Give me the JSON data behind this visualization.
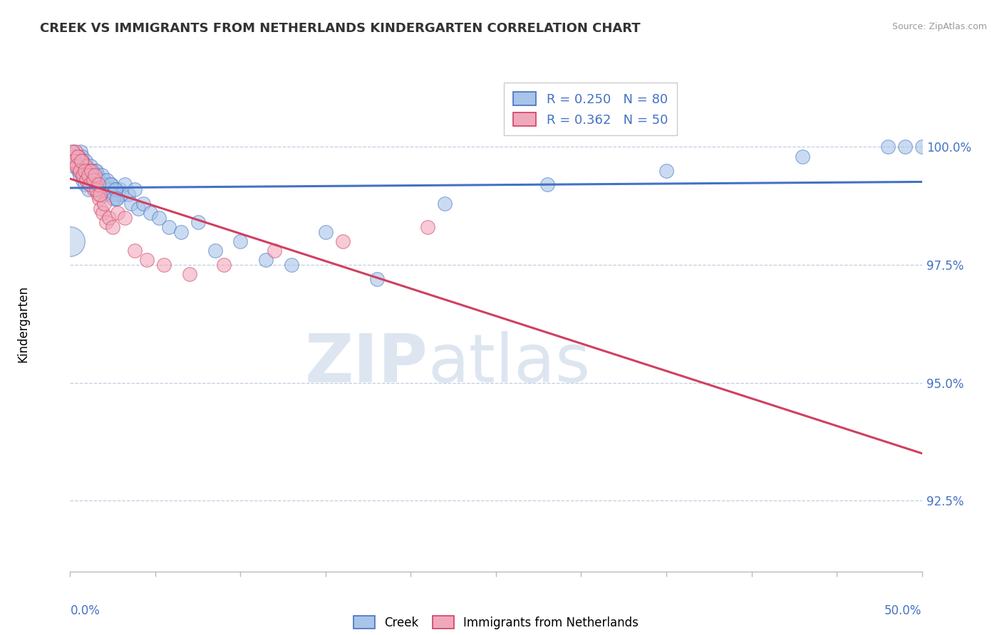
{
  "title": "CREEK VS IMMIGRANTS FROM NETHERLANDS KINDERGARTEN CORRELATION CHART",
  "source_text": "Source: ZipAtlas.com",
  "ylabel": "Kindergarten",
  "legend_entry1": "R = 0.250   N = 80",
  "legend_entry2": "R = 0.362   N = 50",
  "legend_label1": "Creek",
  "legend_label2": "Immigrants from Netherlands",
  "blue_color": "#a8c4e8",
  "pink_color": "#f0a8bc",
  "trend_blue": "#4472c4",
  "trend_pink": "#d04060",
  "grid_color": "#c0cfe0",
  "ytick_labels": [
    "92.5%",
    "95.0%",
    "97.5%",
    "100.0%"
  ],
  "ytick_values": [
    92.5,
    95.0,
    97.5,
    100.0
  ],
  "xmin": 0.0,
  "xmax": 50.0,
  "ymin": 91.0,
  "ymax": 101.5,
  "blue_x": [
    0.2,
    0.3,
    0.4,
    0.5,
    0.6,
    0.7,
    0.8,
    0.9,
    1.0,
    1.1,
    1.2,
    1.3,
    1.4,
    1.5,
    1.6,
    1.7,
    1.8,
    1.9,
    2.0,
    2.1,
    2.2,
    2.3,
    2.4,
    2.5,
    2.6,
    2.7,
    2.8,
    2.9,
    3.0,
    3.2,
    3.4,
    3.6,
    3.8,
    4.0,
    4.3,
    4.7,
    5.2,
    5.8,
    6.5,
    7.5,
    8.5,
    10.0,
    11.5,
    13.0,
    15.0,
    18.0,
    22.0,
    28.0,
    35.0,
    43.0,
    48.0,
    49.0,
    50.0,
    0.15,
    0.25,
    0.35,
    0.45,
    0.55,
    0.65,
    0.75,
    0.85,
    0.95,
    1.05,
    1.15,
    1.25,
    1.35,
    1.45,
    1.55,
    1.65,
    1.75,
    1.85,
    1.95,
    2.05,
    2.15,
    2.25,
    2.35,
    2.45,
    2.55,
    2.65,
    2.75
  ],
  "blue_y": [
    99.6,
    99.7,
    99.8,
    99.5,
    99.9,
    99.8,
    99.6,
    99.7,
    99.5,
    99.4,
    99.6,
    99.5,
    99.3,
    99.5,
    99.4,
    99.2,
    99.3,
    99.1,
    99.3,
    99.2,
    99.0,
    99.1,
    99.2,
    99.0,
    99.1,
    98.9,
    99.0,
    99.1,
    99.0,
    99.2,
    99.0,
    98.8,
    99.1,
    98.7,
    98.8,
    98.6,
    98.5,
    98.3,
    98.2,
    98.4,
    97.8,
    98.0,
    97.6,
    97.5,
    98.2,
    97.2,
    98.8,
    99.2,
    99.5,
    99.8,
    100.0,
    100.0,
    100.0,
    99.9,
    99.8,
    99.7,
    99.6,
    99.4,
    99.5,
    99.3,
    99.2,
    99.4,
    99.1,
    99.5,
    99.3,
    99.4,
    99.2,
    99.5,
    99.3,
    99.1,
    99.4,
    99.2,
    99.0,
    99.3,
    99.1,
    99.2,
    99.0,
    98.9,
    99.1,
    98.9
  ],
  "blue_sizes": [
    30,
    30,
    30,
    30,
    30,
    30,
    30,
    30,
    30,
    30,
    30,
    30,
    30,
    30,
    30,
    30,
    30,
    30,
    30,
    30,
    30,
    30,
    30,
    30,
    30,
    30,
    30,
    30,
    30,
    30,
    30,
    30,
    30,
    30,
    30,
    30,
    30,
    30,
    30,
    30,
    30,
    30,
    30,
    30,
    30,
    30,
    30,
    30,
    30,
    30,
    30,
    30,
    30,
    30,
    30,
    30,
    30,
    30,
    30,
    30,
    30,
    30,
    30,
    30,
    30,
    30,
    30,
    30,
    30,
    30,
    30,
    30,
    30,
    30,
    30,
    30,
    30,
    30,
    30,
    30
  ],
  "pink_x": [
    0.1,
    0.2,
    0.3,
    0.4,
    0.5,
    0.6,
    0.7,
    0.8,
    0.9,
    1.0,
    1.1,
    1.2,
    1.3,
    1.4,
    1.5,
    1.6,
    1.7,
    1.8,
    1.9,
    2.0,
    2.1,
    2.3,
    2.5,
    2.8,
    3.2,
    3.8,
    4.5,
    5.5,
    7.0,
    9.0,
    12.0,
    16.0,
    21.0,
    0.15,
    0.25,
    0.35,
    0.45,
    0.55,
    0.65,
    0.75,
    0.85,
    0.95,
    1.05,
    1.15,
    1.25,
    1.35,
    1.45,
    1.55,
    1.65,
    1.75
  ],
  "pink_y": [
    99.8,
    99.7,
    99.9,
    99.6,
    99.8,
    99.5,
    99.7,
    99.4,
    99.6,
    99.3,
    99.5,
    99.2,
    99.4,
    99.1,
    99.2,
    99.0,
    98.9,
    98.7,
    98.6,
    98.8,
    98.4,
    98.5,
    98.3,
    98.6,
    98.5,
    97.8,
    97.6,
    97.5,
    97.3,
    97.5,
    97.8,
    98.0,
    98.3,
    99.9,
    99.7,
    99.6,
    99.8,
    99.5,
    99.7,
    99.4,
    99.5,
    99.3,
    99.4,
    99.2,
    99.5,
    99.3,
    99.4,
    99.1,
    99.2,
    99.0
  ]
}
